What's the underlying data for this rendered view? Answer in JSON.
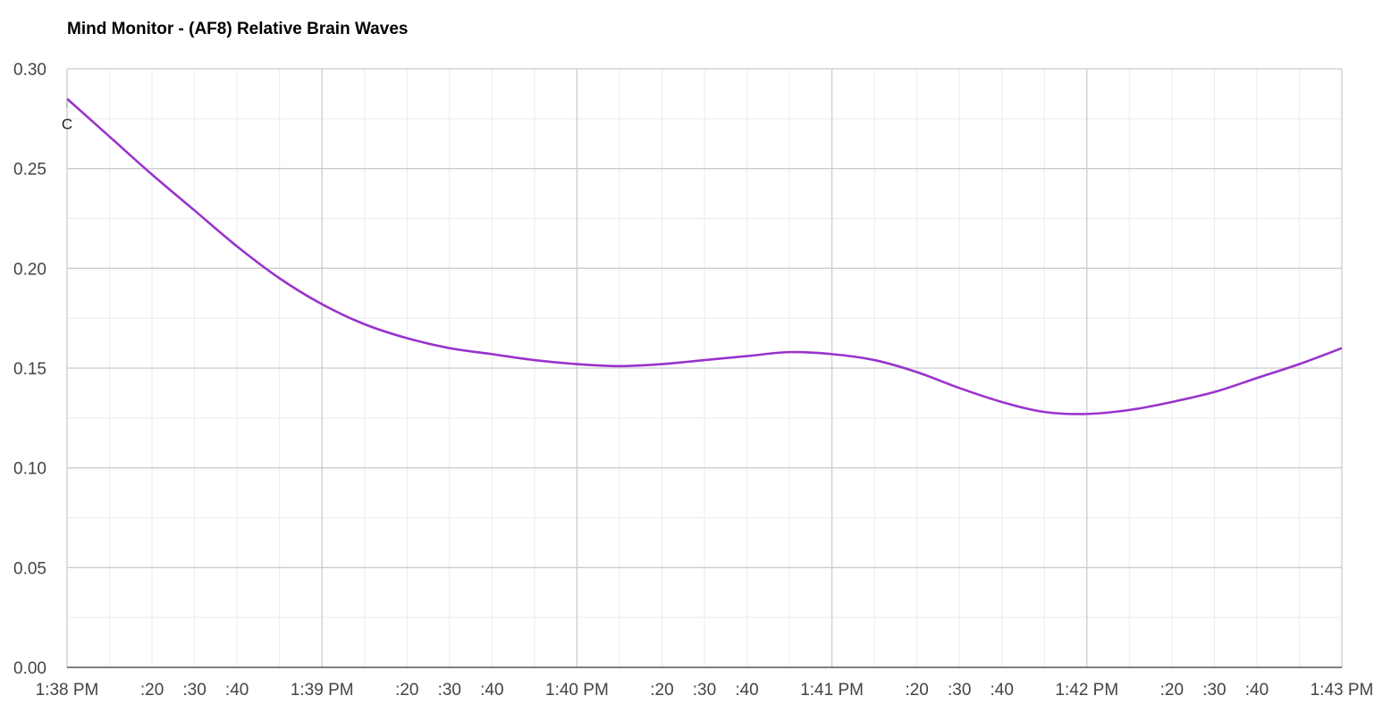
{
  "chart_data": {
    "type": "line",
    "title": "Mind Monitor - (AF8) Relative Brain Waves",
    "xlabel": "",
    "ylabel": "",
    "x_range": [
      "1:38 PM",
      "1:43 PM"
    ],
    "ylim": [
      0,
      0.3
    ],
    "grid": true,
    "legend": "none",
    "y_ticks": [
      "0.00",
      "0.05",
      "0.10",
      "0.15",
      "0.20",
      "0.25",
      "0.30"
    ],
    "x_ticks": [
      {
        "t": 0,
        "label": "1:38 PM"
      },
      {
        "t": 20,
        "label": ":20"
      },
      {
        "t": 30,
        "label": ":30"
      },
      {
        "t": 40,
        "label": ":40"
      },
      {
        "t": 60,
        "label": "1:39 PM"
      },
      {
        "t": 80,
        "label": ":20"
      },
      {
        "t": 90,
        "label": ":30"
      },
      {
        "t": 100,
        "label": ":40"
      },
      {
        "t": 120,
        "label": "1:40 PM"
      },
      {
        "t": 140,
        "label": ":20"
      },
      {
        "t": 150,
        "label": ":30"
      },
      {
        "t": 160,
        "label": ":40"
      },
      {
        "t": 180,
        "label": "1:41 PM"
      },
      {
        "t": 200,
        "label": ":20"
      },
      {
        "t": 210,
        "label": ":30"
      },
      {
        "t": 220,
        "label": ":40"
      },
      {
        "t": 240,
        "label": "1:42 PM"
      },
      {
        "t": 260,
        "label": ":20"
      },
      {
        "t": 270,
        "label": ":30"
      },
      {
        "t": 280,
        "label": ":40"
      },
      {
        "t": 300,
        "label": "1:43 PM"
      }
    ],
    "series": [
      {
        "color": "#9933cc",
        "points": [
          {
            "x": "1:38:00 PM",
            "y": 0.285
          },
          {
            "x": "1:38:10 PM",
            "y": 0.266
          },
          {
            "x": "1:38:20 PM",
            "y": 0.247
          },
          {
            "x": "1:38:30 PM",
            "y": 0.229
          },
          {
            "x": "1:38:40 PM",
            "y": 0.211
          },
          {
            "x": "1:38:50 PM",
            "y": 0.195
          },
          {
            "x": "1:39:00 PM",
            "y": 0.182
          },
          {
            "x": "1:39:10 PM",
            "y": 0.172
          },
          {
            "x": "1:39:20 PM",
            "y": 0.165
          },
          {
            "x": "1:39:30 PM",
            "y": 0.16
          },
          {
            "x": "1:39:40 PM",
            "y": 0.157
          },
          {
            "x": "1:39:50 PM",
            "y": 0.154
          },
          {
            "x": "1:40:00 PM",
            "y": 0.152
          },
          {
            "x": "1:40:10 PM",
            "y": 0.151
          },
          {
            "x": "1:40:20 PM",
            "y": 0.152
          },
          {
            "x": "1:40:30 PM",
            "y": 0.154
          },
          {
            "x": "1:40:40 PM",
            "y": 0.156
          },
          {
            "x": "1:40:50 PM",
            "y": 0.158
          },
          {
            "x": "1:41:00 PM",
            "y": 0.157
          },
          {
            "x": "1:41:10 PM",
            "y": 0.154
          },
          {
            "x": "1:41:20 PM",
            "y": 0.148
          },
          {
            "x": "1:41:30 PM",
            "y": 0.14
          },
          {
            "x": "1:41:40 PM",
            "y": 0.133
          },
          {
            "x": "1:41:50 PM",
            "y": 0.128
          },
          {
            "x": "1:42:00 PM",
            "y": 0.127
          },
          {
            "x": "1:42:10 PM",
            "y": 0.129
          },
          {
            "x": "1:42:20 PM",
            "y": 0.133
          },
          {
            "x": "1:42:30 PM",
            "y": 0.138
          },
          {
            "x": "1:42:40 PM",
            "y": 0.145
          },
          {
            "x": "1:42:50 PM",
            "y": 0.152
          },
          {
            "x": "1:43:00 PM",
            "y": 0.16
          }
        ]
      }
    ],
    "annotations": [
      {
        "text": "C",
        "x": "1:38:00 PM",
        "y": 0.285
      }
    ]
  }
}
